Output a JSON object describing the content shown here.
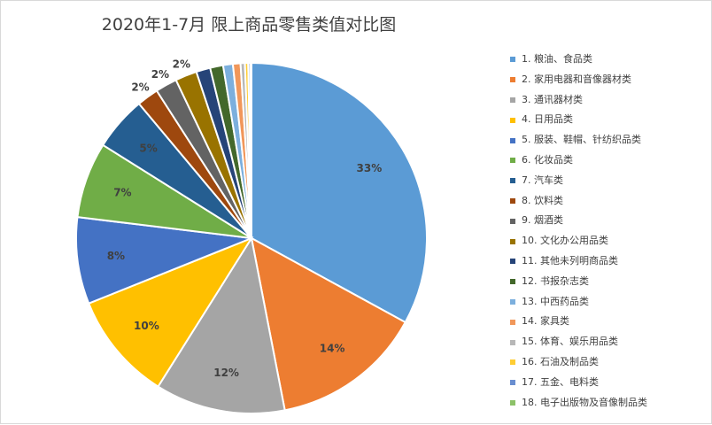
{
  "chart_data": {
    "type": "pie",
    "title": "2020年1-7月 限上商品零售类值对比图",
    "legend_position": "right",
    "slices": [
      {
        "name": "1. 粮油、食品类",
        "value": 33,
        "label": "33%",
        "color": "#5B9BD5"
      },
      {
        "name": "2. 家用电器和音像器材类",
        "value": 14,
        "label": "14%",
        "color": "#ED7D31"
      },
      {
        "name": "3. 通讯器材类",
        "value": 12,
        "label": "12%",
        "color": "#A5A5A5"
      },
      {
        "name": "4. 日用品类",
        "value": 10,
        "label": "10%",
        "color": "#FFC000"
      },
      {
        "name": "5. 服装、鞋帽、针纺织品类",
        "value": 8,
        "label": "8%",
        "color": "#4472C4"
      },
      {
        "name": "6. 化妆品类",
        "value": 7,
        "label": "7%",
        "color": "#70AD47"
      },
      {
        "name": "7. 汽车类",
        "value": 5,
        "label": "5%",
        "color": "#255E91"
      },
      {
        "name": "8. 饮料类",
        "value": 2,
        "label": "2%",
        "color": "#9E480E"
      },
      {
        "name": "9. 烟酒类",
        "value": 2,
        "label": "2%",
        "color": "#636363"
      },
      {
        "name": "10. 文化办公用品类",
        "value": 2,
        "label": "2%",
        "color": "#997300"
      },
      {
        "name": "11. 其他未列明商品类",
        "value": 1.3,
        "label": "",
        "color": "#264478"
      },
      {
        "name": "12. 书报杂志类",
        "value": 1.2,
        "label": "",
        "color": "#43682B"
      },
      {
        "name": "13. 中西药品类",
        "value": 0.9,
        "label": "",
        "color": "#7CAFDD"
      },
      {
        "name": "14. 家具类",
        "value": 0.7,
        "label": "",
        "color": "#F1975A"
      },
      {
        "name": "15. 体育、娱乐用品类",
        "value": 0.4,
        "label": "",
        "color": "#B7B7B7"
      },
      {
        "name": "16. 石油及制品类",
        "value": 0.3,
        "label": "",
        "color": "#FFCD33"
      },
      {
        "name": "17. 五金、电料类",
        "value": 0.2,
        "label": "",
        "color": "#698ED0"
      },
      {
        "name": "18. 电子出版物及音像制品类",
        "value": 0.1,
        "label": "",
        "color": "#8CC168"
      }
    ]
  }
}
